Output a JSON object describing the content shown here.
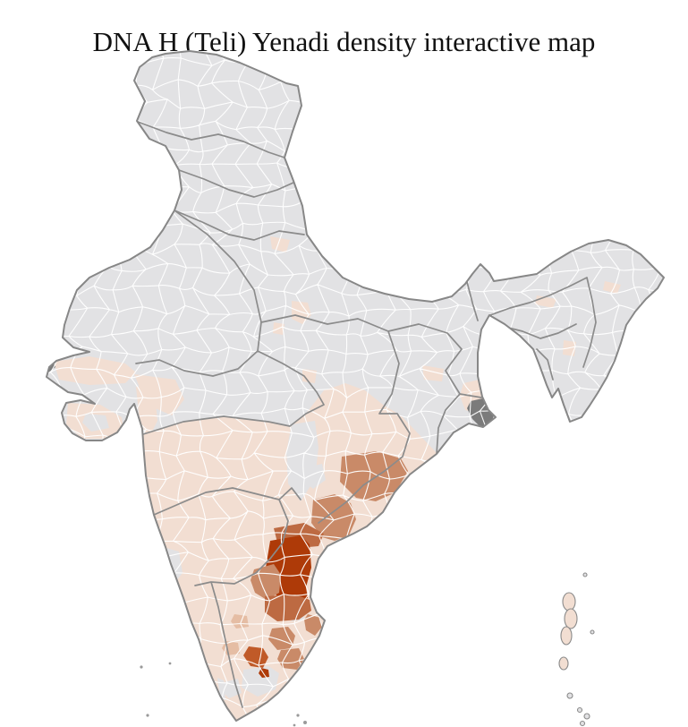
{
  "title": "DNA H (Teli) Yenadi density interactive map",
  "page": {
    "background": "#ffffff",
    "sea_color": "#ffffff"
  },
  "map": {
    "kind": "district-level choropleth of India",
    "palette": {
      "no_data": "#e2e2e4",
      "very_low": "#f2ded2",
      "low": "#e5bda4",
      "medium": "#c98a68",
      "medium_dark": "#bd6a42",
      "high": "#c05a28",
      "highest": "#ae3a08",
      "special_dark": "#7b7b7b",
      "district_border": "#ffffff",
      "state_border": "#8b8b8b",
      "country_border": "#878787",
      "island_stroke": "#8a8a8a",
      "tiny_island_dot": "#9a9a9a"
    },
    "density_levels": [
      "no_data",
      "very_low",
      "low",
      "medium",
      "medium_dark",
      "high",
      "highest"
    ],
    "shaded_areas": [
      {
        "area": "south-east coastal belt (Nellore / Prakasam region)",
        "level": "highest"
      },
      {
        "area": "districts ringing the highest belt and one inland Tamil Nadu district",
        "level": "high"
      },
      {
        "area": "north coastal Andhra and south Odisha coast, scattered Tamil Nadu districts",
        "level": "medium"
      },
      {
        "area": "most of peninsular India, Gujarat coast, parts of Assam, Delhi area, south West Bengal",
        "level": "very_low"
      },
      {
        "area": "northern plains, Rajasthan, central India, most of the north-east",
        "level": "no_data"
      },
      {
        "area": "Sundarbans delta and western Kutch tip",
        "level": "special_dark"
      },
      {
        "area": "Andaman and Nicobar island chain",
        "level": "very_low"
      }
    ]
  }
}
